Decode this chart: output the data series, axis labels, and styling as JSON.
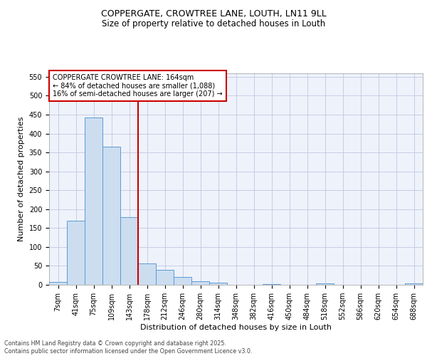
{
  "title1": "COPPERGATE, CROWTREE LANE, LOUTH, LN11 9LL",
  "title2": "Size of property relative to detached houses in Louth",
  "xlabel": "Distribution of detached houses by size in Louth",
  "ylabel": "Number of detached properties",
  "categories": [
    "7sqm",
    "41sqm",
    "75sqm",
    "109sqm",
    "143sqm",
    "178sqm",
    "212sqm",
    "246sqm",
    "280sqm",
    "314sqm",
    "348sqm",
    "382sqm",
    "416sqm",
    "450sqm",
    "484sqm",
    "518sqm",
    "552sqm",
    "586sqm",
    "620sqm",
    "654sqm",
    "688sqm"
  ],
  "values": [
    8,
    170,
    443,
    365,
    178,
    57,
    40,
    21,
    10,
    5,
    0,
    0,
    2,
    0,
    0,
    3,
    0,
    0,
    0,
    0,
    4
  ],
  "bar_color": "#ccddf0",
  "bar_edge_color": "#5b9bd5",
  "bar_width": 1.0,
  "vline_x": 5.0,
  "vline_color": "#cc0000",
  "ylim": [
    0,
    560
  ],
  "yticks": [
    0,
    50,
    100,
    150,
    200,
    250,
    300,
    350,
    400,
    450,
    500,
    550
  ],
  "annotation_text": "COPPERGATE CROWTREE LANE: 164sqm\n← 84% of detached houses are smaller (1,088)\n16% of semi-detached houses are larger (207) →",
  "bg_color": "#eef2fb",
  "grid_color": "#c0c8e0",
  "footer_text": "Contains HM Land Registry data © Crown copyright and database right 2025.\nContains public sector information licensed under the Open Government Licence v3.0.",
  "title1_fontsize": 9,
  "title2_fontsize": 8.5,
  "axis_label_fontsize": 8,
  "tick_fontsize": 7,
  "annotation_fontsize": 7,
  "footer_fontsize": 5.8
}
